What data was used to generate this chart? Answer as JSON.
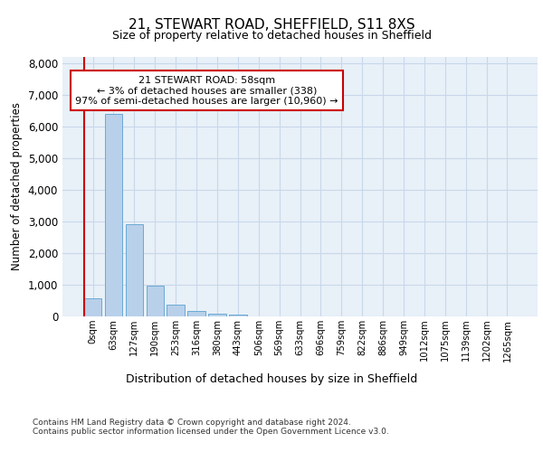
{
  "title_line1": "21, STEWART ROAD, SHEFFIELD, S11 8XS",
  "title_line2": "Size of property relative to detached houses in Sheffield",
  "xlabel": "Distribution of detached houses by size in Sheffield",
  "ylabel": "Number of detached properties",
  "annotation_line1": "21 STEWART ROAD: 58sqm",
  "annotation_line2": "← 3% of detached houses are smaller (338)",
  "annotation_line3": "97% of semi-detached houses are larger (10,960) →",
  "bar_labels": [
    "0sqm",
    "63sqm",
    "127sqm",
    "190sqm",
    "253sqm",
    "316sqm",
    "380sqm",
    "443sqm",
    "506sqm",
    "569sqm",
    "633sqm",
    "696sqm",
    "759sqm",
    "822sqm",
    "886sqm",
    "949sqm",
    "1012sqm",
    "1075sqm",
    "1139sqm",
    "1202sqm",
    "1265sqm"
  ],
  "bar_values": [
    560,
    6400,
    2920,
    970,
    370,
    160,
    80,
    50,
    10,
    0,
    0,
    0,
    0,
    0,
    0,
    0,
    0,
    0,
    0,
    0,
    0
  ],
  "bar_color": "#b8d0ea",
  "bar_edgecolor": "#6aaad4",
  "highlight_color": "#cc0000",
  "annotation_box_color": "#cc0000",
  "grid_color": "#c8d8ea",
  "bg_color": "#e8f0f8",
  "footer_line1": "Contains HM Land Registry data © Crown copyright and database right 2024.",
  "footer_line2": "Contains public sector information licensed under the Open Government Licence v3.0.",
  "ylim": [
    0,
    8200
  ],
  "yticks": [
    0,
    1000,
    2000,
    3000,
    4000,
    5000,
    6000,
    7000,
    8000
  ]
}
